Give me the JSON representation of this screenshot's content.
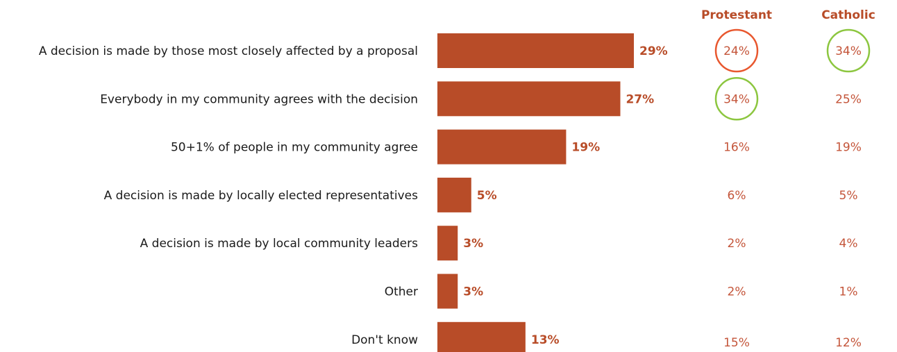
{
  "colors": {
    "bar": "#b84c28",
    "label": "#1a1a1a",
    "accent_text": "#b84c28",
    "sub_value_text": "#c4553a",
    "circle_low": "#e8572e",
    "circle_high": "#8cc63f"
  },
  "chart_data": {
    "type": "bar",
    "orientation": "horizontal",
    "categories": [
      "A decision is made by those most closely affected by a proposal",
      "Everybody in my community agrees with the decision",
      "50+1% of people in my community agree",
      "A decision is made by locally elected representatives",
      "A decision is made by local community leaders",
      "Other",
      "Don't know"
    ],
    "values": [
      29,
      27,
      19,
      5,
      3,
      3,
      13
    ],
    "value_labels": [
      "29%",
      "27%",
      "19%",
      "5%",
      "3%",
      "3%",
      "13%"
    ],
    "xlim": [
      0,
      29
    ],
    "grid": false,
    "columns": [
      {
        "name": "Protestant",
        "values": [
          24,
          34,
          16,
          6,
          2,
          2,
          15
        ],
        "labels": [
          "24%",
          "34%",
          "16%",
          "6%",
          "2%",
          "2%",
          "15%"
        ],
        "circled": [
          "low",
          "high",
          null,
          null,
          null,
          null,
          null
        ]
      },
      {
        "name": "Catholic",
        "values": [
          34,
          25,
          19,
          5,
          4,
          1,
          12
        ],
        "labels": [
          "34%",
          "25%",
          "19%",
          "5%",
          "4%",
          "1%",
          "12%"
        ],
        "circled": [
          "high",
          null,
          null,
          null,
          null,
          null,
          null
        ]
      }
    ]
  }
}
